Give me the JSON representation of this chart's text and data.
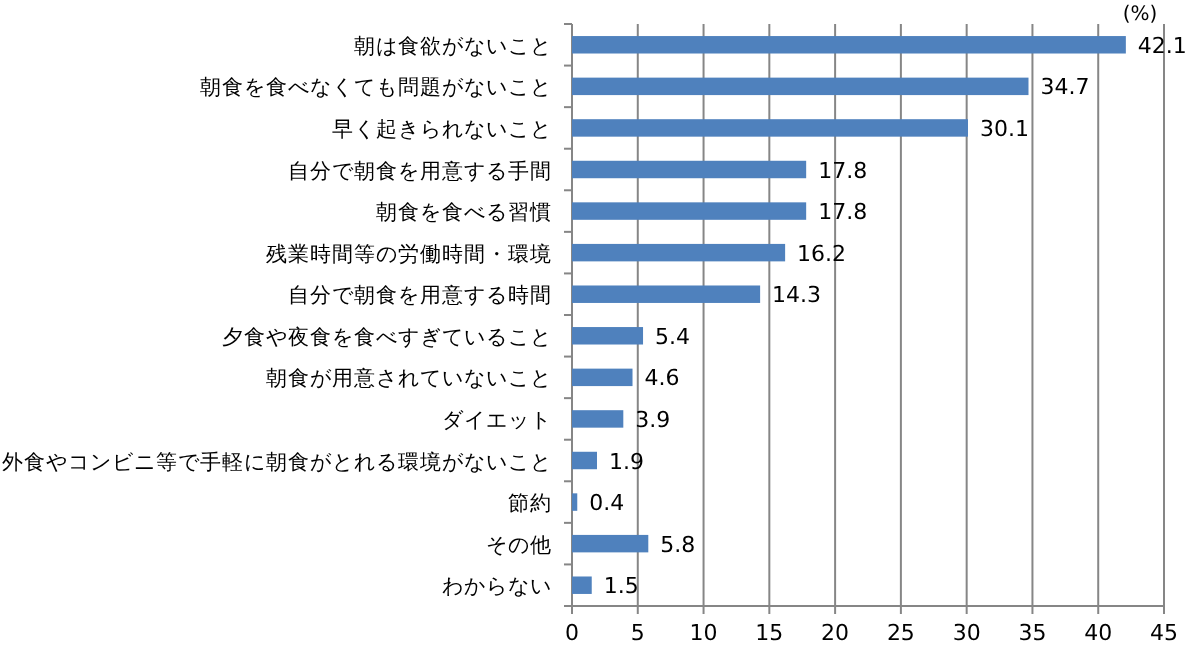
{
  "chart_data": {
    "type": "bar",
    "orientation": "horizontal",
    "categories": [
      "朝は食欲がないこと",
      "朝食を食べなくても問題がないこと",
      "早く起きられないこと",
      "自分で朝食を用意する手間",
      "朝食を食べる習慣",
      "残業時間等の労働時間・環境",
      "自分で朝食を用意する時間",
      "夕食や夜食を食べすぎていること",
      "朝食が用意されていないこと",
      "ダイエット",
      "外食やコンビニ等で手軽に朝食がとれる環境がないこと",
      "節約",
      "その他",
      "わからない"
    ],
    "values": [
      42.1,
      34.7,
      30.1,
      17.8,
      17.8,
      16.2,
      14.3,
      5.4,
      4.6,
      3.9,
      1.9,
      0.4,
      5.8,
      1.5
    ],
    "color": "#4f81bd",
    "xlim": [
      0,
      45
    ],
    "xticks": [
      0,
      5,
      10,
      15,
      20,
      25,
      30,
      35,
      40,
      45
    ],
    "grid": "x",
    "data_labels": true,
    "annotations": [
      "(%)"
    ]
  }
}
